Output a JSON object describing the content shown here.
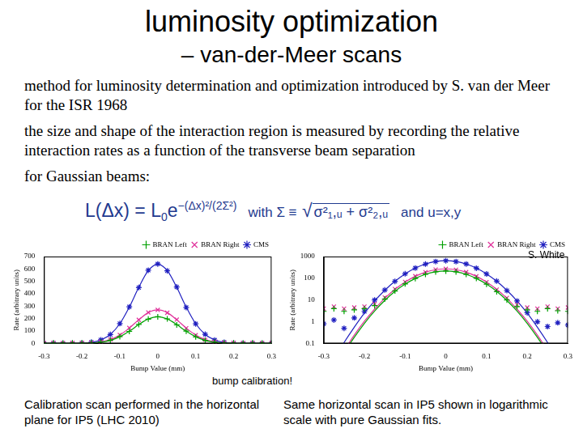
{
  "title": "luminosity optimization",
  "subtitle": "– van-der-Meer scans",
  "paragraphs": [
    "method for luminosity determination and optimization introduced by S. van der Meer for the ISR 1968",
    "the size and shape of the interaction region is measured by recording the relative interaction rates as a function of the transverse beam separation",
    "for Gaussian beams:"
  ],
  "formula": {
    "lhs": "L(Δx) = L",
    "lhs_sub": "0",
    "base": "e",
    "exponent": "−(Δx)²/(2Σ²)",
    "with": "with Σ ≡",
    "root_sign": "√",
    "radicand": "σ²₁,ᵤ + σ²₂,ᵤ",
    "tail": "and u=x,y"
  },
  "credit": "S. White",
  "annotation": "bump calibration!",
  "captions": [
    "Calibration scan performed in the horizontal plane for IP5 (LHC 2010)",
    "Same horizontal scan in IP5 shown in logarithmic scale with pure Gaussian fits."
  ],
  "chart_data": [
    {
      "type": "scatter",
      "x_label": "Bump Value (mm)",
      "y_label": "Rate (arbitrary units)",
      "x": [
        -0.3,
        -0.275,
        -0.25,
        -0.225,
        -0.2,
        -0.175,
        -0.15,
        -0.125,
        -0.1,
        -0.075,
        -0.05,
        -0.025,
        0,
        0.025,
        0.05,
        0.075,
        0.1,
        0.125,
        0.15,
        0.175,
        0.2,
        0.225,
        0.25,
        0.275,
        0.3
      ],
      "xlim": [
        -0.3,
        0.3
      ],
      "xticks": [
        -0.3,
        -0.2,
        -0.1,
        0,
        0.1,
        0.2,
        0.3
      ],
      "ylim": [
        0,
        700
      ],
      "yticks": [
        0,
        100,
        200,
        300,
        400,
        500,
        600,
        700
      ],
      "grid": false,
      "legend": "top right",
      "series": [
        {
          "name": "BRAN Left",
          "color": "#00a000",
          "marker": "plus",
          "line_style": "solid",
          "values": [
            3,
            4,
            3,
            3.5,
            4,
            5.5,
            11,
            26,
            55,
            97,
            153,
            196,
            215,
            198,
            150,
            99,
            53,
            24,
            10,
            5,
            3.5,
            3,
            4,
            3.2,
            3
          ],
          "fit": [
            0.001,
            0.006,
            0.037,
            0.19,
            0.84,
            3.1,
            9.5,
            25,
            54,
            98,
            152,
            197,
            215,
            197,
            152,
            98,
            54,
            25,
            9.5,
            3.1,
            0.84,
            0.19,
            0.037,
            0.006,
            0.001
          ]
        },
        {
          "name": "BRAN Right",
          "color": "#e0309a",
          "marker": "cross",
          "line_style": "solid",
          "values": [
            4,
            5,
            4,
            4.5,
            5,
            6.5,
            13,
            32,
            68,
            125,
            190,
            250,
            270,
            247,
            192,
            123,
            66,
            30,
            12.5,
            6,
            4.5,
            4,
            5,
            4,
            4.5
          ],
          "fit": [
            0.001,
            0.007,
            0.046,
            0.24,
            1.05,
            3.8,
            12,
            31,
            67,
            124,
            191,
            248,
            270,
            248,
            191,
            124,
            67,
            31,
            12,
            3.8,
            1.05,
            0.24,
            0.046,
            0.007,
            0.001
          ]
        },
        {
          "name": "CMS",
          "color": "#2020c0",
          "marker": "star",
          "line_style": "solid",
          "values": [
            0.8,
            1.2,
            0.5,
            1.5,
            3,
            10,
            29,
            72,
            160,
            295,
            450,
            590,
            640,
            585,
            455,
            290,
            158,
            74,
            27,
            9,
            2.6,
            1,
            0.6,
            0.9,
            0.7
          ],
          "fit": [
            0.003,
            0.018,
            0.11,
            0.56,
            2.5,
            9.1,
            28,
            73,
            159,
            293,
            452,
            587,
            640,
            587,
            452,
            293,
            159,
            73,
            28,
            9.1,
            2.5,
            0.56,
            0.11,
            0.018,
            0.003
          ]
        }
      ]
    },
    {
      "type": "scatter",
      "x_label": "Bump Value (mm)",
      "y_label": "Rate (arbitrary units)",
      "log": "y",
      "x": [
        -0.3,
        -0.275,
        -0.25,
        -0.225,
        -0.2,
        -0.175,
        -0.15,
        -0.125,
        -0.1,
        -0.075,
        -0.05,
        -0.025,
        0,
        0.025,
        0.05,
        0.075,
        0.1,
        0.125,
        0.15,
        0.175,
        0.2,
        0.225,
        0.25,
        0.275,
        0.3
      ],
      "xlim": [
        -0.3,
        0.3
      ],
      "xticks": [
        -0.3,
        -0.2,
        -0.1,
        0,
        0.1,
        0.2,
        0.3
      ],
      "ylim": [
        0.1,
        1000
      ],
      "yticks": [
        0.1,
        1,
        10,
        100,
        1000
      ],
      "grid": false,
      "legend": "top right",
      "series": [
        {
          "name": "BRAN Left",
          "color": "#00a000",
          "marker": "plus",
          "line_style": "solid",
          "values": [
            3,
            4,
            3,
            3.5,
            4,
            5.5,
            11,
            26,
            55,
            97,
            153,
            196,
            215,
            198,
            150,
            99,
            53,
            24,
            10,
            5,
            3.5,
            3,
            4,
            3.2,
            3
          ],
          "fit": [
            0.001,
            0.006,
            0.037,
            0.19,
            0.84,
            3.1,
            9.5,
            25,
            54,
            98,
            152,
            197,
            215,
            197,
            152,
            98,
            54,
            25,
            9.5,
            3.1,
            0.84,
            0.19,
            0.037,
            0.006,
            0.001
          ]
        },
        {
          "name": "BRAN Right",
          "color": "#e0309a",
          "marker": "cross",
          "line_style": "solid",
          "values": [
            4,
            5,
            4,
            4.5,
            5,
            6.5,
            13,
            32,
            68,
            125,
            190,
            250,
            270,
            247,
            192,
            123,
            66,
            30,
            12.5,
            6,
            4.5,
            4,
            5,
            4,
            4.5
          ],
          "fit": [
            0.001,
            0.007,
            0.046,
            0.24,
            1.05,
            3.8,
            12,
            31,
            67,
            124,
            191,
            248,
            270,
            248,
            191,
            124,
            67,
            31,
            12,
            3.8,
            1.05,
            0.24,
            0.046,
            0.007,
            0.001
          ]
        },
        {
          "name": "CMS",
          "color": "#2020c0",
          "marker": "star",
          "line_style": "solid",
          "values": [
            0.8,
            1.2,
            0.5,
            1.5,
            3,
            10,
            29,
            72,
            160,
            295,
            450,
            590,
            640,
            585,
            455,
            290,
            158,
            74,
            27,
            9,
            2.6,
            1,
            0.6,
            0.9,
            0.7
          ],
          "fit": [
            0.003,
            0.018,
            0.11,
            0.56,
            2.5,
            9.1,
            28,
            73,
            159,
            293,
            452,
            587,
            640,
            587,
            452,
            293,
            159,
            73,
            28,
            9.1,
            2.5,
            0.56,
            0.11,
            0.018,
            0.003
          ]
        }
      ]
    }
  ]
}
